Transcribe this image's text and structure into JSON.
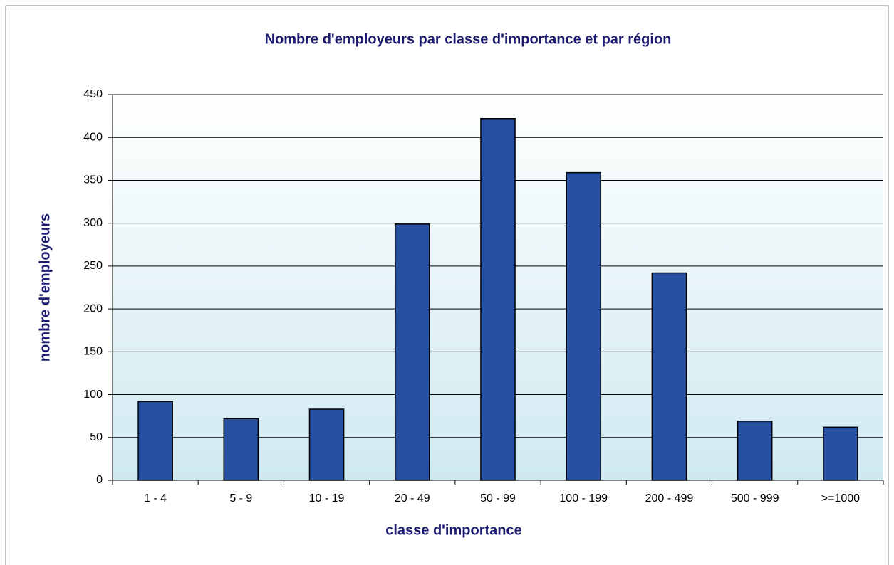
{
  "chart_data": {
    "type": "bar",
    "title": "Nombre d'employeurs par classe d'importance et par région",
    "x_label": "classe d'importance",
    "y_label": "nombre d'employeurs",
    "categories": [
      "1 - 4",
      "5 - 9",
      "10 - 19",
      "20 - 49",
      "50 - 99",
      "100 - 199",
      "200 - 499",
      "500 - 999",
      ">=1000"
    ],
    "values": [
      92,
      72,
      83,
      299,
      422,
      359,
      242,
      69,
      62
    ],
    "color": "#2850a0",
    "ylim": [
      0,
      450
    ],
    "yticks": [
      0,
      50,
      100,
      150,
      200,
      250,
      300,
      350,
      400,
      450
    ],
    "grid": true
  }
}
